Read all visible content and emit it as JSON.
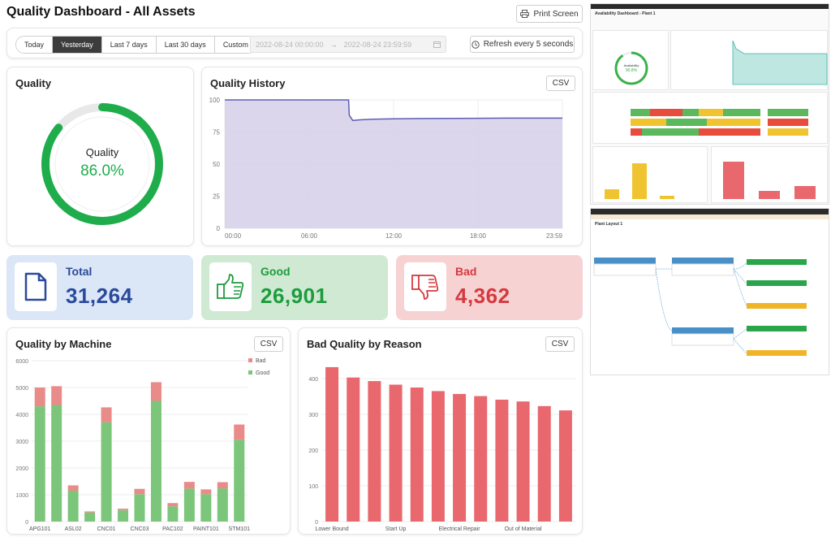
{
  "header": {
    "title": "Quality Dashboard - All Assets",
    "print_label": "Print Screen",
    "print_icon": "printer-icon"
  },
  "filters": {
    "ranges": [
      "Today",
      "Yesterday",
      "Last 7 days",
      "Last 30 days",
      "Custom"
    ],
    "active_range": "Yesterday",
    "date_start": "2022-08-24 00:00:00",
    "date_arrow": "→",
    "date_end": "2022-08-24 23:59:59",
    "refresh_label": "Refresh every 5 seconds"
  },
  "quality_gauge": {
    "title": "Quality",
    "label": "Quality",
    "value_text": "86.0%",
    "fraction": 0.86,
    "color": "#1fad4b"
  },
  "history": {
    "title": "Quality History",
    "csv_label": "CSV"
  },
  "kpis": {
    "total": {
      "label": "Total",
      "value": "31,264",
      "color": "#2a4a9c",
      "bg": "#dbe6f6",
      "icon": "document-icon"
    },
    "good": {
      "label": "Good",
      "value": "26,901",
      "color": "#1d9c3d",
      "bg": "#cfe9d3",
      "icon": "thumbs-up-icon"
    },
    "bad": {
      "label": "Bad",
      "value": "4,362",
      "color": "#d43a3f",
      "bg": "#f7d2d3",
      "icon": "thumbs-down-icon"
    }
  },
  "by_machine": {
    "title": "Quality by Machine",
    "csv_label": "CSV"
  },
  "by_reason": {
    "title": "Bad Quality by Reason",
    "csv_label": "CSV"
  },
  "chart_data": [
    {
      "type": "area",
      "title": "Quality History",
      "x_ticks": [
        "00:00",
        "06:00",
        "12:00",
        "18:00",
        "23:59"
      ],
      "y_ticks": [
        "0",
        "25",
        "50",
        "75",
        "100"
      ],
      "ylim": [
        0,
        100
      ],
      "x_hours": [
        0,
        8.8,
        8.85,
        9.1,
        9.6,
        10.5,
        12,
        14,
        16,
        18,
        20,
        22,
        24
      ],
      "values": [
        100,
        100,
        88,
        84,
        84.5,
        85,
        85.3,
        85.5,
        85.6,
        85.7,
        85.8,
        85.8,
        85.8
      ],
      "fill": "#d8d2eb",
      "stroke": "#5b5fb3",
      "grid": true
    },
    {
      "type": "bar",
      "stacked": true,
      "title": "Quality by Machine",
      "categories": [
        "APG101",
        "",
        "ASL02",
        "",
        "CNC01",
        "",
        "CNC03",
        "",
        "PAC102",
        "",
        "PAINT101",
        "",
        "STM101"
      ],
      "y_ticks": [
        "0",
        "1000",
        "2000",
        "3000",
        "4000",
        "5000",
        "6000"
      ],
      "ylim": [
        0,
        6000
      ],
      "series": [
        {
          "name": "Good",
          "color": "#7bc67a",
          "values": [
            4300,
            4350,
            1150,
            340,
            3700,
            420,
            1020,
            4500,
            570,
            1230,
            1020,
            1240,
            3050
          ]
        },
        {
          "name": "Bad",
          "color": "#e98b89",
          "values": [
            700,
            700,
            200,
            40,
            560,
            60,
            200,
            700,
            120,
            250,
            180,
            230,
            570
          ]
        }
      ],
      "legend": "top-right",
      "grid": true
    },
    {
      "type": "bar",
      "title": "Bad Quality by Reason",
      "categories": [
        "Lower Bound",
        "",
        "",
        "Start Up",
        "",
        "",
        "Electrical Repair",
        "",
        "",
        "Out of Material",
        "",
        ""
      ],
      "values": [
        432,
        403,
        393,
        383,
        375,
        365,
        357,
        351,
        341,
        336,
        323,
        311
      ],
      "y_ticks": [
        "0",
        "100",
        "200",
        "300",
        "400"
      ],
      "ylim": [
        0,
        450
      ],
      "color": "#e8686e",
      "grid": true
    }
  ],
  "thumbnails": {
    "top_title": "Availability Dashboard - Plant 1",
    "top_gauge_label": "Availability",
    "top_gauge_value": "90.8%",
    "bottom_title": "Plant Layout 1"
  }
}
